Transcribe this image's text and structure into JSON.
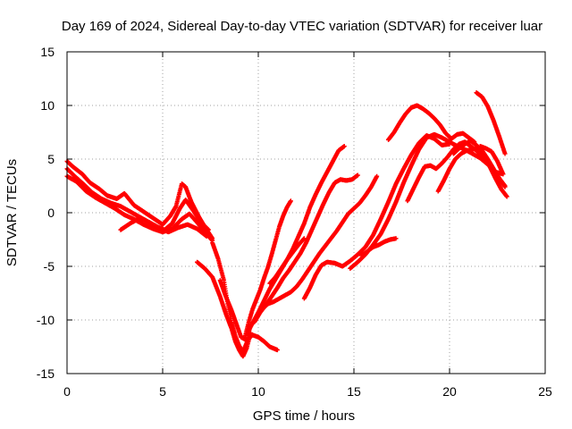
{
  "chart_data": {
    "type": "scatter",
    "title": "Day 169 of 2024, Sidereal Day-to-day VTEC variation (SDTVAR) for receiver luar",
    "xlabel": "GPS time / hours",
    "ylabel": "SDTVAR / TECUs",
    "xlim": [
      0,
      25
    ],
    "ylim": [
      -15,
      15
    ],
    "xticks": [
      0,
      5,
      10,
      15,
      20,
      25
    ],
    "yticks": [
      -15,
      -10,
      -5,
      0,
      5,
      10,
      15
    ],
    "xtick_labels": [
      "0",
      "5",
      "10",
      "15",
      "20",
      "25"
    ],
    "ytick_labels": [
      "-15",
      "-10",
      "-5",
      "0",
      "5",
      "10",
      "15"
    ],
    "grid": true,
    "marker": "+",
    "color": "#ff0000",
    "series": [
      {
        "x": [
          0.0,
          0.3,
          0.8,
          1.2,
          1.7,
          2.1,
          2.6,
          3.0,
          3.5,
          4.0,
          4.5,
          5.0,
          5.4,
          5.7,
          6.0,
          6.2,
          6.5,
          6.9,
          7.2,
          7.6
        ],
        "y": [
          4.8,
          4.3,
          3.6,
          2.8,
          2.2,
          1.6,
          1.3,
          1.8,
          0.7,
          0.1,
          -0.5,
          -1.1,
          -0.3,
          0.6,
          2.7,
          2.4,
          1.0,
          -0.4,
          -1.3,
          -2.4
        ]
      },
      {
        "x": [
          0.0,
          0.4,
          0.9,
          1.3,
          1.8,
          2.3,
          2.8,
          3.2,
          3.7,
          4.2,
          4.7,
          5.1,
          5.5,
          5.9,
          6.2,
          6.6,
          7.0,
          7.4
        ],
        "y": [
          4.1,
          3.4,
          2.6,
          1.9,
          1.3,
          0.9,
          0.6,
          0.2,
          -0.3,
          -0.8,
          -1.3,
          -1.6,
          -1.0,
          0.4,
          1.2,
          0.2,
          -0.9,
          -1.6
        ]
      },
      {
        "x": [
          0.0,
          0.5,
          1.0,
          1.5,
          2.0,
          2.5,
          3.0,
          3.5,
          4.0,
          4.5,
          5.0,
          5.5,
          6.0,
          6.4,
          6.8,
          7.2,
          7.6
        ],
        "y": [
          3.4,
          2.9,
          2.0,
          1.4,
          0.9,
          0.4,
          -0.2,
          -0.6,
          -1.1,
          -1.5,
          -1.8,
          -1.5,
          -0.6,
          -0.1,
          -0.9,
          -1.8,
          -2.6
        ]
      },
      {
        "x": [
          2.8,
          3.3,
          3.8,
          4.3,
          4.8,
          5.3,
          5.8,
          6.3,
          6.8,
          7.3
        ],
        "y": [
          -1.6,
          -1.0,
          -0.5,
          -0.9,
          -1.4,
          -1.8,
          -1.4,
          -1.1,
          -1.5,
          -2.2
        ]
      },
      {
        "x": [
          6.8,
          7.2,
          7.6,
          8.0,
          8.3,
          8.6,
          8.8,
          9.0,
          9.2,
          9.4,
          9.6
        ],
        "y": [
          -4.6,
          -5.2,
          -6.0,
          -7.8,
          -9.4,
          -10.8,
          -12.0,
          -12.8,
          -13.4,
          -12.6,
          -11.2
        ]
      },
      {
        "x": [
          7.6,
          7.9,
          8.2,
          8.4,
          8.6,
          8.8,
          9.0,
          9.2,
          9.4,
          9.6
        ],
        "y": [
          -2.8,
          -4.3,
          -6.3,
          -8.5,
          -10.2,
          -11.5,
          -12.4,
          -13.0,
          -12.1,
          -10.4
        ]
      },
      {
        "x": [
          8.0,
          8.3,
          8.6,
          8.9,
          9.1,
          9.4,
          9.7,
          10.0,
          10.3,
          10.6,
          11.0
        ],
        "y": [
          -6.3,
          -7.8,
          -9.1,
          -10.6,
          -11.6,
          -11.9,
          -11.4,
          -11.6,
          -12.0,
          -12.5,
          -12.8
        ]
      },
      {
        "x": [
          9.3,
          9.5,
          9.7,
          9.9,
          10.1,
          10.3,
          10.5,
          10.7,
          10.9,
          11.1,
          11.3,
          11.5,
          11.7
        ],
        "y": [
          -11.6,
          -10.2,
          -9.0,
          -8.1,
          -7.2,
          -6.1,
          -5.1,
          -3.9,
          -2.6,
          -1.3,
          -0.3,
          0.5,
          1.1
        ]
      },
      {
        "x": [
          9.4,
          9.7,
          10.0,
          10.3,
          10.6,
          10.9,
          11.2,
          11.5,
          11.8,
          12.1,
          12.4,
          12.7,
          13.0,
          13.3,
          13.6,
          13.9,
          14.2,
          14.5
        ],
        "y": [
          -11.3,
          -10.3,
          -9.3,
          -8.2,
          -7.1,
          -6.2,
          -5.3,
          -4.4,
          -3.4,
          -2.2,
          -1.0,
          0.5,
          1.7,
          2.8,
          3.8,
          4.8,
          5.8,
          6.2
        ]
      },
      {
        "x": [
          9.8,
          10.1,
          10.4,
          10.7,
          11.0,
          11.3,
          11.6,
          11.9,
          12.2,
          12.5,
          12.8,
          13.1,
          13.4,
          13.7,
          14.0,
          14.3,
          14.6,
          14.9,
          15.2
        ],
        "y": [
          -10.2,
          -9.3,
          -8.6,
          -7.8,
          -7.0,
          -6.1,
          -5.4,
          -4.6,
          -3.8,
          -2.8,
          -1.6,
          -0.4,
          0.8,
          1.9,
          2.8,
          3.1,
          3.0,
          3.1,
          3.5
        ]
      },
      {
        "x": [
          10.2,
          10.5,
          10.8,
          11.1,
          11.4,
          11.7,
          12.0,
          12.3,
          12.6,
          12.9,
          13.2,
          13.5,
          13.8,
          14.1,
          14.4,
          14.7,
          15.0,
          15.3,
          15.6,
          15.9,
          16.2
        ],
        "y": [
          -9.0,
          -8.5,
          -8.3,
          -8.0,
          -7.7,
          -7.4,
          -6.9,
          -6.2,
          -5.4,
          -4.6,
          -3.8,
          -3.1,
          -2.4,
          -1.7,
          -0.9,
          -0.1,
          0.4,
          0.9,
          1.6,
          2.4,
          3.4
        ]
      },
      {
        "x": [
          10.6,
          10.9,
          11.2,
          11.5,
          11.8,
          12.1,
          12.4
        ],
        "y": [
          -6.6,
          -6.0,
          -5.2,
          -4.4,
          -3.7,
          -3.0,
          -2.4
        ]
      },
      {
        "x": [
          12.4,
          12.7,
          13.0,
          13.3,
          13.6,
          14.0,
          14.4,
          14.8,
          15.2,
          15.6,
          16.0,
          16.4,
          16.8,
          17.2,
          17.6,
          18.0,
          18.4,
          18.8,
          19.2,
          19.6,
          20.0
        ],
        "y": [
          -8.0,
          -7.0,
          -5.8,
          -4.9,
          -4.6,
          -4.7,
          -5.0,
          -4.5,
          -3.9,
          -3.2,
          -2.1,
          -0.6,
          1.0,
          2.7,
          4.1,
          5.4,
          6.5,
          7.2,
          6.9,
          6.3,
          6.4
        ]
      },
      {
        "x": [
          14.8,
          15.2,
          15.6,
          16.0,
          16.4,
          16.8,
          17.2,
          17.6,
          18.0,
          18.4,
          18.8,
          19.2,
          19.6,
          20.0,
          20.4,
          20.8,
          21.2,
          21.6,
          22.0,
          22.4,
          22.8
        ],
        "y": [
          -5.2,
          -4.6,
          -3.9,
          -3.0,
          -2.0,
          -0.6,
          1.0,
          2.8,
          4.4,
          5.9,
          7.0,
          7.3,
          7.0,
          6.6,
          6.2,
          5.9,
          5.5,
          5.1,
          4.5,
          3.8,
          3.6
        ]
      },
      {
        "x": [
          15.4,
          15.7,
          16.0,
          16.3,
          16.6,
          16.9,
          17.2
        ],
        "y": [
          -4.0,
          -3.6,
          -3.2,
          -3.0,
          -2.7,
          -2.5,
          -2.4
        ]
      },
      {
        "x": [
          16.8,
          17.1,
          17.4,
          17.7,
          18.0,
          18.3,
          18.6,
          18.9,
          19.2,
          19.5,
          19.8,
          20.1,
          20.4,
          20.7,
          21.0,
          21.3
        ],
        "y": [
          6.8,
          7.5,
          8.4,
          9.2,
          9.8,
          10.0,
          9.7,
          9.3,
          8.8,
          8.2,
          7.4,
          6.9,
          7.3,
          7.4,
          7.0,
          6.6
        ]
      },
      {
        "x": [
          17.8,
          18.1,
          18.4,
          18.7,
          19.0,
          19.3,
          19.6,
          19.9,
          20.2,
          20.5,
          20.8,
          21.1,
          21.4,
          21.7,
          22.0,
          22.3,
          22.6,
          22.9
        ],
        "y": [
          1.1,
          2.2,
          3.3,
          4.3,
          4.4,
          4.1,
          4.6,
          5.2,
          5.9,
          6.4,
          6.6,
          6.2,
          5.8,
          5.3,
          4.8,
          4.0,
          3.2,
          2.4
        ]
      },
      {
        "x": [
          19.4,
          19.7,
          20.0,
          20.3,
          20.6,
          20.9,
          21.2,
          21.5,
          21.8,
          22.1,
          22.4,
          22.7,
          23.0
        ],
        "y": [
          2.0,
          3.0,
          4.1,
          5.0,
          5.5,
          5.8,
          5.9,
          6.0,
          5.2,
          4.3,
          3.2,
          2.2,
          1.5
        ]
      },
      {
        "x": [
          20.2,
          20.5,
          20.8,
          21.1,
          21.4,
          21.7,
          22.0,
          22.3,
          22.6,
          22.9
        ],
        "y": [
          5.5,
          6.0,
          6.4,
          6.7,
          6.3,
          5.8,
          5.0,
          4.1,
          3.2,
          2.5
        ]
      },
      {
        "x": [
          21.4,
          21.7,
          22.0,
          22.3,
          22.6,
          22.9
        ],
        "y": [
          11.2,
          10.8,
          9.9,
          8.6,
          7.1,
          5.5
        ]
      },
      {
        "x": [
          21.6,
          21.9,
          22.2,
          22.5,
          22.8
        ],
        "y": [
          6.2,
          6.0,
          5.7,
          4.8,
          3.6
        ]
      }
    ]
  }
}
